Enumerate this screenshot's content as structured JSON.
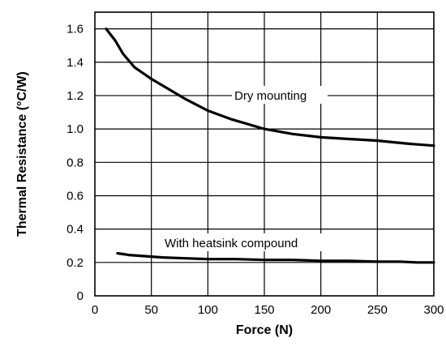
{
  "chart_data": {
    "type": "line",
    "title": "",
    "xlabel": "Force (N)",
    "ylabel": "Thermal Resistance (°C/W)",
    "xlim": [
      0,
      300
    ],
    "ylim": [
      0,
      1.7
    ],
    "grid": true,
    "x_ticks": [
      "0",
      "50",
      "100",
      "150",
      "200",
      "250",
      "300"
    ],
    "y_ticks": [
      "0",
      "0.2",
      "0.4",
      "0.6",
      "0.8",
      "1.0",
      "1.2",
      "1.4",
      "1.6"
    ],
    "x_tick_values": [
      0,
      50,
      100,
      150,
      200,
      250,
      300
    ],
    "y_tick_values": [
      0,
      0.2,
      0.4,
      0.6,
      0.8,
      1.0,
      1.2,
      1.4,
      1.6
    ],
    "series": [
      {
        "name": "",
        "annotation": "Dry mounting",
        "x": [
          10,
          18,
          25,
          35,
          50,
          65,
          80,
          100,
          120,
          150,
          175,
          200,
          225,
          250,
          265,
          280,
          300
        ],
        "y": [
          1.6,
          1.53,
          1.45,
          1.37,
          1.3,
          1.24,
          1.18,
          1.11,
          1.06,
          1.0,
          0.97,
          0.95,
          0.94,
          0.93,
          0.92,
          0.91,
          0.9
        ]
      },
      {
        "name": "",
        "annotation": "With heatsink compound",
        "x": [
          20,
          25,
          30,
          40,
          60,
          80,
          100,
          125,
          150,
          175,
          200,
          225,
          250,
          270,
          285,
          300
        ],
        "y": [
          0.255,
          0.25,
          0.245,
          0.24,
          0.23,
          0.225,
          0.22,
          0.22,
          0.215,
          0.215,
          0.21,
          0.21,
          0.205,
          0.205,
          0.2,
          0.2
        ]
      }
    ]
  }
}
